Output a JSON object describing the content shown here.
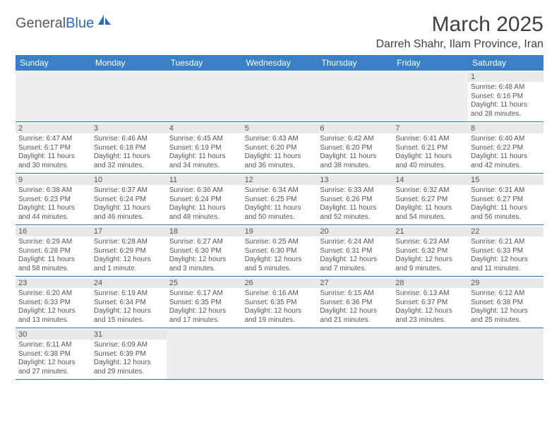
{
  "logo": {
    "general": "General",
    "blue": "Blue"
  },
  "title": "March 2025",
  "location": "Darreh Shahr, Ilam Province, Iran",
  "colors": {
    "header_bg": "#3b7fc4",
    "header_text": "#ffffff",
    "border": "#2a6db0",
    "daynum_bg": "#e8e8e8",
    "empty_bg": "#eeeeee",
    "text": "#555555"
  },
  "day_names": [
    "Sunday",
    "Monday",
    "Tuesday",
    "Wednesday",
    "Thursday",
    "Friday",
    "Saturday"
  ],
  "weeks": [
    [
      {
        "empty": true
      },
      {
        "empty": true
      },
      {
        "empty": true
      },
      {
        "empty": true
      },
      {
        "empty": true
      },
      {
        "empty": true
      },
      {
        "n": "1",
        "sunrise": "Sunrise: 6:48 AM",
        "sunset": "Sunset: 6:16 PM",
        "daylight": "Daylight: 11 hours and 28 minutes."
      }
    ],
    [
      {
        "n": "2",
        "sunrise": "Sunrise: 6:47 AM",
        "sunset": "Sunset: 6:17 PM",
        "daylight": "Daylight: 11 hours and 30 minutes."
      },
      {
        "n": "3",
        "sunrise": "Sunrise: 6:46 AM",
        "sunset": "Sunset: 6:18 PM",
        "daylight": "Daylight: 11 hours and 32 minutes."
      },
      {
        "n": "4",
        "sunrise": "Sunrise: 6:45 AM",
        "sunset": "Sunset: 6:19 PM",
        "daylight": "Daylight: 11 hours and 34 minutes."
      },
      {
        "n": "5",
        "sunrise": "Sunrise: 6:43 AM",
        "sunset": "Sunset: 6:20 PM",
        "daylight": "Daylight: 11 hours and 36 minutes."
      },
      {
        "n": "6",
        "sunrise": "Sunrise: 6:42 AM",
        "sunset": "Sunset: 6:20 PM",
        "daylight": "Daylight: 11 hours and 38 minutes."
      },
      {
        "n": "7",
        "sunrise": "Sunrise: 6:41 AM",
        "sunset": "Sunset: 6:21 PM",
        "daylight": "Daylight: 11 hours and 40 minutes."
      },
      {
        "n": "8",
        "sunrise": "Sunrise: 6:40 AM",
        "sunset": "Sunset: 6:22 PM",
        "daylight": "Daylight: 11 hours and 42 minutes."
      }
    ],
    [
      {
        "n": "9",
        "sunrise": "Sunrise: 6:38 AM",
        "sunset": "Sunset: 6:23 PM",
        "daylight": "Daylight: 11 hours and 44 minutes."
      },
      {
        "n": "10",
        "sunrise": "Sunrise: 6:37 AM",
        "sunset": "Sunset: 6:24 PM",
        "daylight": "Daylight: 11 hours and 46 minutes."
      },
      {
        "n": "11",
        "sunrise": "Sunrise: 6:36 AM",
        "sunset": "Sunset: 6:24 PM",
        "daylight": "Daylight: 11 hours and 48 minutes."
      },
      {
        "n": "12",
        "sunrise": "Sunrise: 6:34 AM",
        "sunset": "Sunset: 6:25 PM",
        "daylight": "Daylight: 11 hours and 50 minutes."
      },
      {
        "n": "13",
        "sunrise": "Sunrise: 6:33 AM",
        "sunset": "Sunset: 6:26 PM",
        "daylight": "Daylight: 11 hours and 52 minutes."
      },
      {
        "n": "14",
        "sunrise": "Sunrise: 6:32 AM",
        "sunset": "Sunset: 6:27 PM",
        "daylight": "Daylight: 11 hours and 54 minutes."
      },
      {
        "n": "15",
        "sunrise": "Sunrise: 6:31 AM",
        "sunset": "Sunset: 6:27 PM",
        "daylight": "Daylight: 11 hours and 56 minutes."
      }
    ],
    [
      {
        "n": "16",
        "sunrise": "Sunrise: 6:29 AM",
        "sunset": "Sunset: 6:28 PM",
        "daylight": "Daylight: 11 hours and 58 minutes."
      },
      {
        "n": "17",
        "sunrise": "Sunrise: 6:28 AM",
        "sunset": "Sunset: 6:29 PM",
        "daylight": "Daylight: 12 hours and 1 minute."
      },
      {
        "n": "18",
        "sunrise": "Sunrise: 6:27 AM",
        "sunset": "Sunset: 6:30 PM",
        "daylight": "Daylight: 12 hours and 3 minutes."
      },
      {
        "n": "19",
        "sunrise": "Sunrise: 6:25 AM",
        "sunset": "Sunset: 6:30 PM",
        "daylight": "Daylight: 12 hours and 5 minutes."
      },
      {
        "n": "20",
        "sunrise": "Sunrise: 6:24 AM",
        "sunset": "Sunset: 6:31 PM",
        "daylight": "Daylight: 12 hours and 7 minutes."
      },
      {
        "n": "21",
        "sunrise": "Sunrise: 6:23 AM",
        "sunset": "Sunset: 6:32 PM",
        "daylight": "Daylight: 12 hours and 9 minutes."
      },
      {
        "n": "22",
        "sunrise": "Sunrise: 6:21 AM",
        "sunset": "Sunset: 6:33 PM",
        "daylight": "Daylight: 12 hours and 11 minutes."
      }
    ],
    [
      {
        "n": "23",
        "sunrise": "Sunrise: 6:20 AM",
        "sunset": "Sunset: 6:33 PM",
        "daylight": "Daylight: 12 hours and 13 minutes."
      },
      {
        "n": "24",
        "sunrise": "Sunrise: 6:19 AM",
        "sunset": "Sunset: 6:34 PM",
        "daylight": "Daylight: 12 hours and 15 minutes."
      },
      {
        "n": "25",
        "sunrise": "Sunrise: 6:17 AM",
        "sunset": "Sunset: 6:35 PM",
        "daylight": "Daylight: 12 hours and 17 minutes."
      },
      {
        "n": "26",
        "sunrise": "Sunrise: 6:16 AM",
        "sunset": "Sunset: 6:35 PM",
        "daylight": "Daylight: 12 hours and 19 minutes."
      },
      {
        "n": "27",
        "sunrise": "Sunrise: 6:15 AM",
        "sunset": "Sunset: 6:36 PM",
        "daylight": "Daylight: 12 hours and 21 minutes."
      },
      {
        "n": "28",
        "sunrise": "Sunrise: 6:13 AM",
        "sunset": "Sunset: 6:37 PM",
        "daylight": "Daylight: 12 hours and 23 minutes."
      },
      {
        "n": "29",
        "sunrise": "Sunrise: 6:12 AM",
        "sunset": "Sunset: 6:38 PM",
        "daylight": "Daylight: 12 hours and 25 minutes."
      }
    ],
    [
      {
        "n": "30",
        "sunrise": "Sunrise: 6:11 AM",
        "sunset": "Sunset: 6:38 PM",
        "daylight": "Daylight: 12 hours and 27 minutes."
      },
      {
        "n": "31",
        "sunrise": "Sunrise: 6:09 AM",
        "sunset": "Sunset: 6:39 PM",
        "daylight": "Daylight: 12 hours and 29 minutes."
      },
      {
        "empty": true
      },
      {
        "empty": true
      },
      {
        "empty": true
      },
      {
        "empty": true
      },
      {
        "empty": true
      }
    ]
  ]
}
